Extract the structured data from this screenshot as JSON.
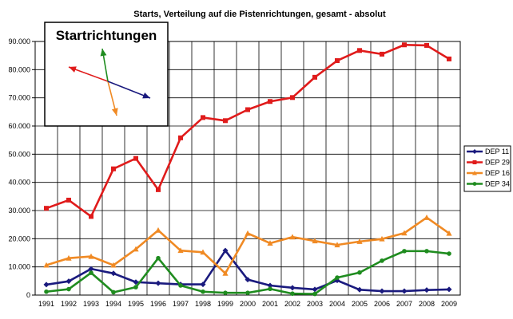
{
  "chart_data": {
    "type": "line",
    "title": "Starts, Verteilung auf die Pistenrichtungen, gesamt - absolut",
    "xlabel": "",
    "ylabel": "",
    "categories": [
      "1991",
      "1992",
      "1993",
      "1994",
      "1995",
      "1996",
      "1997",
      "1998",
      "1999",
      "2000",
      "2001",
      "2002",
      "2003",
      "2004",
      "2005",
      "2006",
      "2007",
      "2008",
      "2009"
    ],
    "ylim": [
      0,
      90000
    ],
    "yticks": [
      0,
      10000,
      20000,
      30000,
      40000,
      50000,
      60000,
      70000,
      80000,
      90000
    ],
    "ytick_labels": [
      "0",
      "10.000",
      "20.000",
      "30.000",
      "40.000",
      "50.000",
      "60.000",
      "70.000",
      "80.000",
      "90.000"
    ],
    "grid": true,
    "legend_position": "right",
    "series": [
      {
        "name": "DEP 11",
        "color": "#1a1a7e",
        "values": [
          3700,
          4900,
          9300,
          7700,
          4600,
          4200,
          3800,
          3800,
          15800,
          5500,
          3400,
          2600,
          2000,
          5200,
          1900,
          1400,
          1400,
          1800,
          2000
        ]
      },
      {
        "name": "DEP 29",
        "color": "#e01b1b",
        "values": [
          30800,
          33700,
          27900,
          44800,
          48500,
          37400,
          55800,
          63000,
          61900,
          65800,
          68700,
          70100,
          77300,
          83200,
          86800,
          85500,
          88800,
          88600,
          83800
        ]
      },
      {
        "name": "DEP 16",
        "color": "#f08a24",
        "values": [
          10600,
          13100,
          13700,
          10600,
          16300,
          23000,
          15800,
          15200,
          7700,
          21900,
          18400,
          20600,
          19200,
          17800,
          19000,
          19900,
          22000,
          27500,
          21900
        ]
      },
      {
        "name": "DEP 34",
        "color": "#1f8c1f",
        "values": [
          1200,
          2100,
          7900,
          1000,
          2800,
          13100,
          3400,
          1200,
          800,
          800,
          2200,
          500,
          400,
          6200,
          8000,
          12200,
          15600,
          15600,
          14700
        ]
      }
    ]
  },
  "inset": {
    "title": "Startrichtungen",
    "arrows": [
      {
        "icon": "arrow-dep29-icon",
        "color": "#e01b1b"
      },
      {
        "icon": "arrow-dep34-icon",
        "color": "#1f8c1f"
      },
      {
        "icon": "arrow-dep16-icon",
        "color": "#f08a24"
      },
      {
        "icon": "arrow-dep11-icon",
        "color": "#1a1a7e"
      }
    ]
  },
  "legend_order": [
    0,
    1,
    2,
    3
  ]
}
